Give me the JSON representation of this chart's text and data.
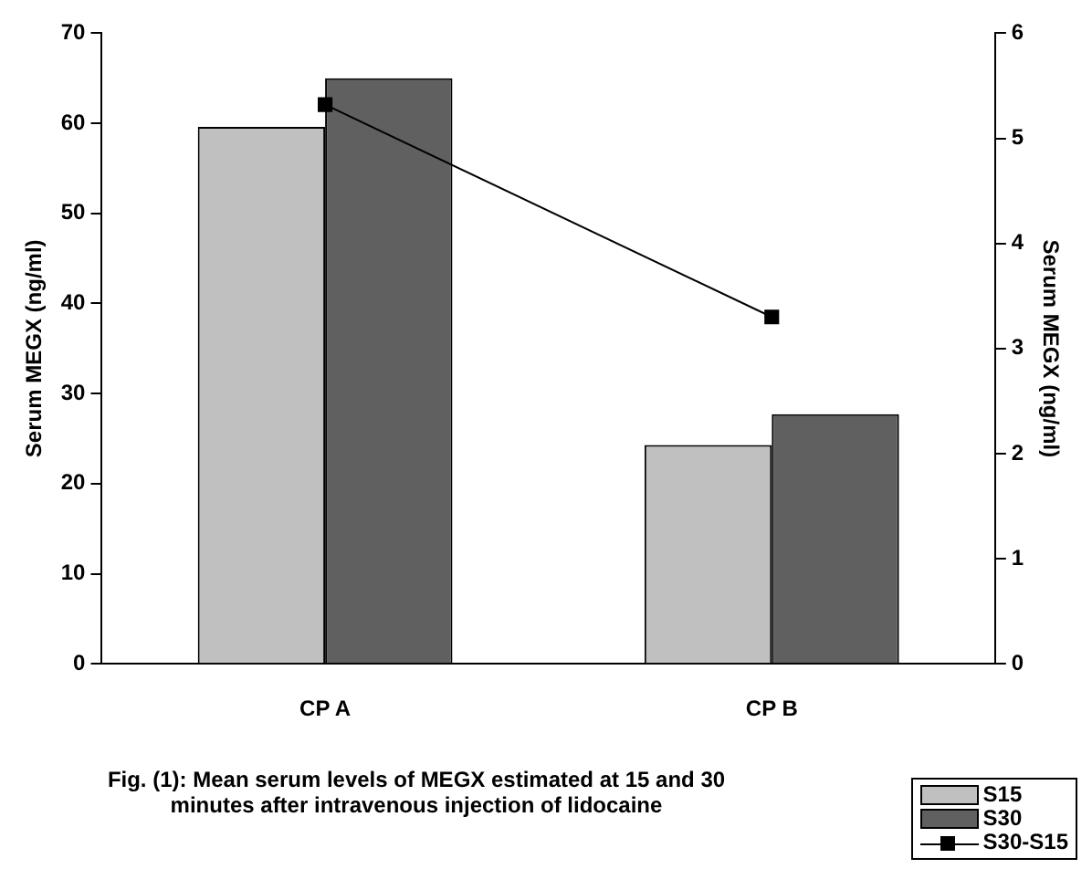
{
  "chart_data": {
    "type": "bar",
    "categories": [
      "CP A",
      "CP B"
    ],
    "ylabel": "Serum MEGX (ng/ml)",
    "y2label": "Serum MEGX (ng/ml)",
    "ylim": [
      0,
      70
    ],
    "yticks": [
      0,
      10,
      20,
      30,
      40,
      50,
      60,
      70
    ],
    "y2lim": [
      0,
      6
    ],
    "y2ticks": [
      0,
      1,
      2,
      3,
      4,
      5,
      6
    ],
    "series": [
      {
        "name": "S15",
        "color": "#c0c0c0",
        "values": [
          59.6,
          24.3
        ]
      },
      {
        "name": "S30",
        "color": "#606060",
        "values": [
          65.0,
          27.7
        ]
      },
      {
        "name": "S30-S15",
        "type": "line",
        "axis": "y2",
        "color": "#000000",
        "values": [
          5.32,
          3.3
        ]
      }
    ],
    "marker": "square",
    "grid": false,
    "legend": "bottom right",
    "annotations": [
      "Fig. (1): Mean serum levels of MEGX estimated at 15 and 30 minutes after intravenous injection of lidocaine"
    ]
  }
}
